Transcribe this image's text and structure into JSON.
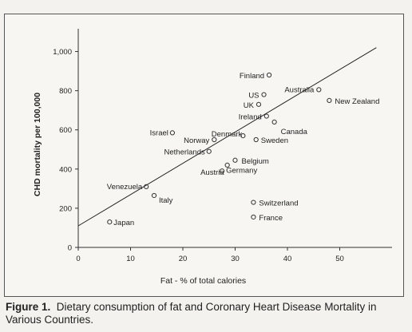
{
  "chart_data": {
    "type": "scatter",
    "title": "",
    "xlabel": "Fat - % of total calories",
    "ylabel": "CHD mortality per 100,000",
    "xlim": [
      0,
      60
    ],
    "ylim": [
      0,
      1100
    ],
    "x_ticks": [
      0,
      10,
      20,
      30,
      40,
      50
    ],
    "y_ticks": [
      0,
      200,
      400,
      600,
      800,
      1000
    ],
    "y_tick_labels": [
      "0",
      "200",
      "400",
      "600",
      "800",
      "1,000"
    ],
    "grid": false,
    "legend": "none",
    "points": [
      {
        "label": "Finland",
        "x": 36.5,
        "y": 880
      },
      {
        "label": "Australia",
        "x": 46,
        "y": 805
      },
      {
        "label": "US",
        "x": 35.5,
        "y": 780
      },
      {
        "label": "UK",
        "x": 34.5,
        "y": 730
      },
      {
        "label": "New Zealand",
        "x": 48,
        "y": 750
      },
      {
        "label": "Ireland",
        "x": 36,
        "y": 670
      },
      {
        "label": "Canada",
        "x": 37.5,
        "y": 640
      },
      {
        "label": "Israel",
        "x": 18,
        "y": 585
      },
      {
        "label": "Denmark",
        "x": 31.5,
        "y": 570
      },
      {
        "label": "Norway",
        "x": 26,
        "y": 550
      },
      {
        "label": "Sweden",
        "x": 34,
        "y": 550
      },
      {
        "label": "Netherlands",
        "x": 25,
        "y": 490
      },
      {
        "label": "Belgium",
        "x": 30,
        "y": 445
      },
      {
        "label": "Austria",
        "x": 28.5,
        "y": 420
      },
      {
        "label": "Germany",
        "x": 27.5,
        "y": 390
      },
      {
        "label": "Venezuela",
        "x": 13,
        "y": 310
      },
      {
        "label": "Italy",
        "x": 14.5,
        "y": 265
      },
      {
        "label": "Switzerland",
        "x": 33.5,
        "y": 230
      },
      {
        "label": "France",
        "x": 33.5,
        "y": 155
      },
      {
        "label": "Japan",
        "x": 6,
        "y": 130
      }
    ],
    "trend_line": {
      "x": [
        0,
        57
      ],
      "y": [
        110,
        1020
      ]
    }
  },
  "caption": {
    "figure_number": "Figure 1.",
    "text": "Dietary consumption of fat and Coronary Heart Disease Mortality in Various Countries."
  }
}
